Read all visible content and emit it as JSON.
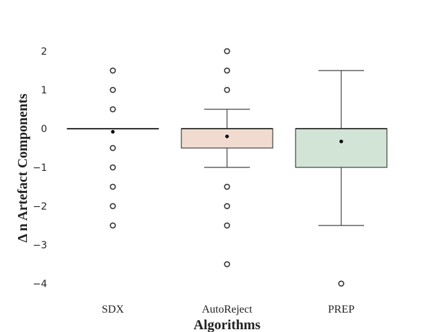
{
  "chart_data": {
    "type": "box",
    "xlabel": "Algorithms",
    "ylabel": "Δ n Artefact Components",
    "ylim": [
      -4.3,
      2.4
    ],
    "yticks": [
      2,
      1,
      0,
      -1,
      -2,
      -3,
      -4
    ],
    "ytick_labels": [
      "2",
      "1",
      "0",
      "−1",
      "−2",
      "−3",
      "−4"
    ],
    "grid": false,
    "categories": [
      "SDX",
      "AutoReject",
      "PREP"
    ],
    "boxes": [
      {
        "name": "SDX",
        "q1": 0,
        "median": 0,
        "q3": 0,
        "whisker_low": 0,
        "whisker_high": 0,
        "mean": -0.08,
        "outliers": [
          1.5,
          1,
          0.5,
          -0.5,
          -1,
          -1.5,
          -2,
          -2.5
        ],
        "color": "#ffffff"
      },
      {
        "name": "AutoReject",
        "q1": -0.5,
        "median": 0,
        "q3": 0,
        "whisker_low": -1,
        "whisker_high": 0.5,
        "mean": -0.2,
        "outliers": [
          2,
          1.5,
          1,
          -1.5,
          -2,
          -2.5,
          -3.5
        ],
        "color": "#f1dbd0"
      },
      {
        "name": "PREP",
        "q1": -1,
        "median": 0,
        "q3": 0,
        "whisker_low": -2.5,
        "whisker_high": 1.5,
        "mean": -0.33,
        "outliers": [
          -4
        ],
        "color": "#d2e4d6"
      }
    ]
  }
}
